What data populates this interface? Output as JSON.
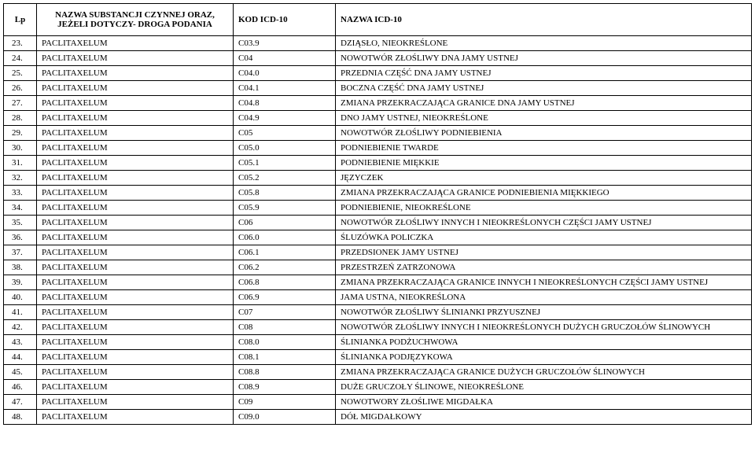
{
  "header": {
    "lp": "Lp",
    "substance": "NAZWA SUBSTANCJI CZYNNEJ ORAZ, JEŻELI DOTYCZY- DROGA PODANIA",
    "code": "KOD ICD-10",
    "desc": "NAZWA ICD-10"
  },
  "rows": [
    {
      "lp": "23.",
      "name": "PACLITAXELUM",
      "code": "C03.9",
      "desc": "DZIĄSŁO, NIEOKREŚLONE"
    },
    {
      "lp": "24.",
      "name": "PACLITAXELUM",
      "code": "C04",
      "desc": "NOWOTWÓR ZŁOŚLIWY DNA JAMY USTNEJ"
    },
    {
      "lp": "25.",
      "name": "PACLITAXELUM",
      "code": "C04.0",
      "desc": "PRZEDNIA CZĘŚĆ DNA JAMY USTNEJ"
    },
    {
      "lp": "26.",
      "name": "PACLITAXELUM",
      "code": "C04.1",
      "desc": "BOCZNA CZĘŚĆ DNA JAMY USTNEJ"
    },
    {
      "lp": "27.",
      "name": "PACLITAXELUM",
      "code": "C04.8",
      "desc": "ZMIANA PRZEKRACZAJĄCA GRANICE DNA JAMY USTNEJ"
    },
    {
      "lp": "28.",
      "name": "PACLITAXELUM",
      "code": "C04.9",
      "desc": "DNO JAMY USTNEJ, NIEOKREŚLONE"
    },
    {
      "lp": "29.",
      "name": "PACLITAXELUM",
      "code": "C05",
      "desc": "NOWOTWÓR ZŁOŚLIWY PODNIEBIENIA"
    },
    {
      "lp": "30.",
      "name": "PACLITAXELUM",
      "code": "C05.0",
      "desc": "PODNIEBIENIE TWARDE"
    },
    {
      "lp": "31.",
      "name": "PACLITAXELUM",
      "code": "C05.1",
      "desc": "PODNIEBIENIE MIĘKKIE"
    },
    {
      "lp": "32.",
      "name": "PACLITAXELUM",
      "code": "C05.2",
      "desc": "JĘZYCZEK"
    },
    {
      "lp": "33.",
      "name": "PACLITAXELUM",
      "code": "C05.8",
      "desc": "ZMIANA PRZEKRACZAJĄCA GRANICE PODNIEBIENIA MIĘKKIEGO"
    },
    {
      "lp": "34.",
      "name": "PACLITAXELUM",
      "code": "C05.9",
      "desc": "PODNIEBIENIE, NIEOKREŚLONE"
    },
    {
      "lp": "35.",
      "name": "PACLITAXELUM",
      "code": "C06",
      "desc": "NOWOTWÓR ZŁOŚLIWY INNYCH I NIEOKREŚLONYCH CZĘŚCI JAMY USTNEJ"
    },
    {
      "lp": "36.",
      "name": "PACLITAXELUM",
      "code": "C06.0",
      "desc": "ŚLUZÓWKA POLICZKA"
    },
    {
      "lp": "37.",
      "name": "PACLITAXELUM",
      "code": "C06.1",
      "desc": "PRZEDSIONEK JAMY USTNEJ"
    },
    {
      "lp": "38.",
      "name": "PACLITAXELUM",
      "code": "C06.2",
      "desc": "PRZESTRZEŃ ZATRZONOWA"
    },
    {
      "lp": "39.",
      "name": "PACLITAXELUM",
      "code": "C06.8",
      "desc": "ZMIANA PRZEKRACZAJĄCA GRANICE INNYCH I NIEOKREŚLONYCH CZĘŚCI JAMY USTNEJ"
    },
    {
      "lp": "40.",
      "name": "PACLITAXELUM",
      "code": "C06.9",
      "desc": "JAMA USTNA, NIEOKREŚLONA"
    },
    {
      "lp": "41.",
      "name": "PACLITAXELUM",
      "code": "C07",
      "desc": "NOWOTWÓR ZŁOŚLIWY ŚLINIANKI PRZYUSZNEJ"
    },
    {
      "lp": "42.",
      "name": "PACLITAXELUM",
      "code": "C08",
      "desc": "NOWOTWÓR ZŁOŚLIWY INNYCH I NIEOKREŚLONYCH DUŻYCH GRUCZOŁÓW ŚLINOWYCH"
    },
    {
      "lp": "43.",
      "name": "PACLITAXELUM",
      "code": "C08.0",
      "desc": "ŚLINIANKA PODŻUCHWOWA"
    },
    {
      "lp": "44.",
      "name": "PACLITAXELUM",
      "code": "C08.1",
      "desc": "ŚLINIANKA PODJĘZYKOWA"
    },
    {
      "lp": "45.",
      "name": "PACLITAXELUM",
      "code": "C08.8",
      "desc": "ZMIANA PRZEKRACZAJĄCA GRANICE DUŻYCH GRUCZOŁÓW ŚLINOWYCH"
    },
    {
      "lp": "46.",
      "name": "PACLITAXELUM",
      "code": "C08.9",
      "desc": "DUŻE GRUCZOŁY ŚLINOWE, NIEOKREŚLONE"
    },
    {
      "lp": "47.",
      "name": "PACLITAXELUM",
      "code": "C09",
      "desc": "NOWOTWORY ZŁOŚLIWE MIGDAŁKA"
    },
    {
      "lp": "48.",
      "name": "PACLITAXELUM",
      "code": "C09.0",
      "desc": "DÓŁ MIGDAŁKOWY"
    }
  ]
}
